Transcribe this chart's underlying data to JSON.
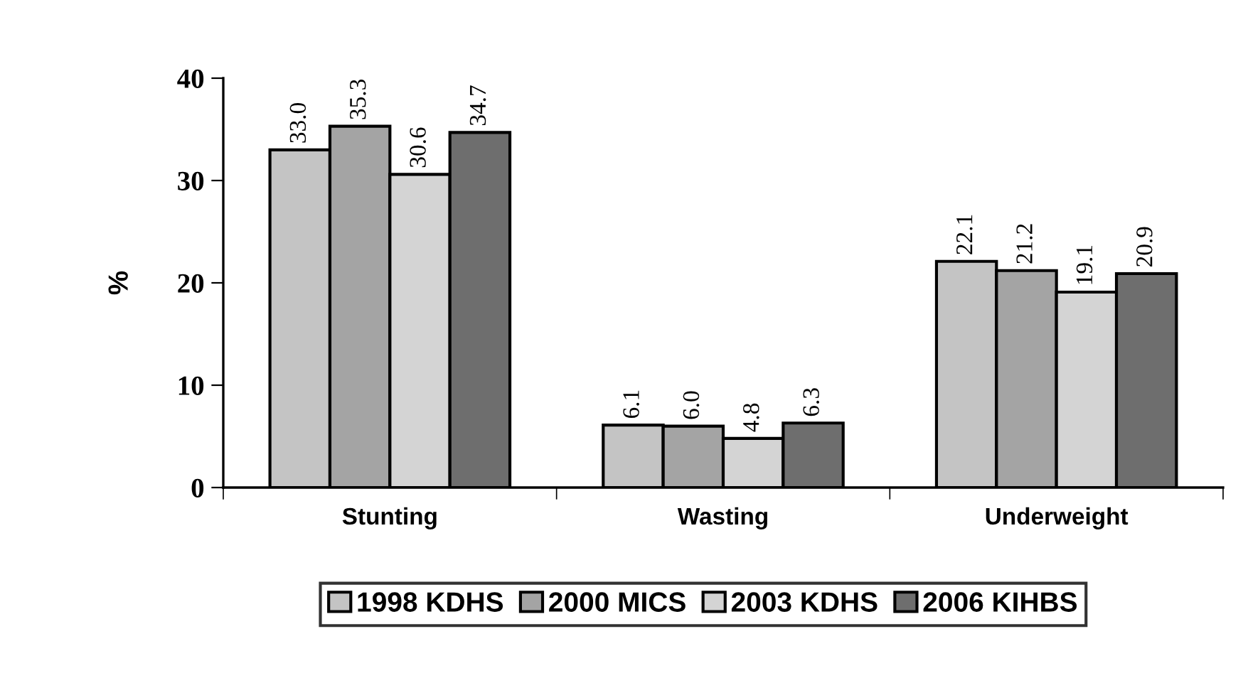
{
  "chart_data": {
    "type": "bar",
    "ylabel": "%",
    "categories": [
      "Stunting",
      "Wasting",
      "Underweight"
    ],
    "series": [
      {
        "name": "1998 KDHS",
        "color": "#c4c4c4",
        "values": [
          33.0,
          6.1,
          22.1
        ],
        "value_labels": [
          "33.0",
          "6.1",
          "22.1"
        ]
      },
      {
        "name": "2000 MICS",
        "color": "#a4a4a4",
        "values": [
          35.3,
          6.0,
          21.2
        ],
        "value_labels": [
          "35.3",
          "6.0",
          "21.2"
        ]
      },
      {
        "name": "2003 KDHS",
        "color": "#d4d4d4",
        "values": [
          30.6,
          4.8,
          19.1
        ],
        "value_labels": [
          "30.6",
          "4.8",
          "19.1"
        ]
      },
      {
        "name": "2006 KIHBS",
        "color": "#6e6e6e",
        "values": [
          34.7,
          6.3,
          20.9
        ],
        "value_labels": [
          "34.7",
          "6.3",
          "20.9"
        ]
      }
    ],
    "ylim": [
      0,
      40
    ],
    "yticks": [
      0,
      10,
      20,
      30,
      40
    ],
    "grid": false,
    "legend": "bottom"
  }
}
